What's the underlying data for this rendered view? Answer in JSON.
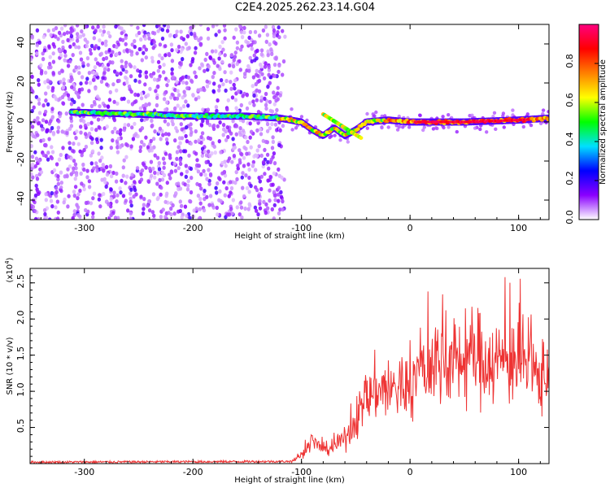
{
  "title": "C2E4.2025.262.23.14.G04",
  "chart_data": [
    {
      "type": "heatmap",
      "name": "spectrogram",
      "xlabel": "Height of straight line (km)",
      "ylabel": "Frequency (Hz)",
      "xlim": [
        -350,
        128
      ],
      "ylim": [
        -50,
        50
      ],
      "xticks": [
        -300,
        -200,
        -100,
        0,
        100
      ],
      "yticks": [
        -40,
        -20,
        0,
        20,
        40
      ],
      "colorbar": {
        "label": "Normalized spectral amplitude",
        "range": [
          0,
          1
        ],
        "ticks": [
          0.0,
          0.2,
          0.4,
          0.6,
          0.8
        ],
        "colormap": [
          "#ffffff",
          "#8a00ff",
          "#0000ff",
          "#00e0ff",
          "#00ff00",
          "#ffff00",
          "#ff8000",
          "#ff0000",
          "#ff0080"
        ]
      },
      "ridge": {
        "x": [
          -310,
          -250,
          -200,
          -150,
          -120,
          -100,
          -90,
          -80,
          -70,
          -60,
          -50,
          -40,
          -20,
          0,
          50,
          100,
          128
        ],
        "y": [
          5,
          4,
          3,
          3,
          2,
          0,
          -4,
          -7,
          -3,
          -7,
          -4,
          0,
          1,
          0,
          0,
          1,
          2
        ]
      },
      "noise_region_x": [
        -350,
        -115
      ]
    },
    {
      "type": "line",
      "name": "snr",
      "xlabel": "Height of straight line (km)",
      "ylabel": "SNR (10 * v/v)",
      "multiplier_label": "(x10",
      "multiplier_exp": "4",
      "xlim": [
        -350,
        128
      ],
      "ylim": [
        0,
        2.7
      ],
      "xticks": [
        -300,
        -200,
        -100,
        0,
        100
      ],
      "yticks": [
        0.5,
        1.0,
        1.5,
        2.0,
        2.5
      ],
      "color": "#ee3333",
      "envelope": {
        "x": [
          -350,
          -110,
          -100,
          -90,
          -80,
          -70,
          -60,
          -50,
          -40,
          -30,
          -20,
          -10,
          0,
          10,
          20,
          30,
          40,
          50,
          60,
          70,
          80,
          90,
          100,
          110,
          120,
          128
        ],
        "y": [
          0.02,
          0.03,
          0.12,
          0.3,
          0.2,
          0.22,
          0.35,
          0.6,
          0.9,
          1.05,
          1.0,
          1.05,
          1.1,
          1.25,
          1.4,
          1.45,
          1.4,
          1.45,
          1.5,
          1.45,
          1.4,
          1.45,
          1.45,
          1.3,
          1.15,
          1.3
        ]
      }
    }
  ]
}
